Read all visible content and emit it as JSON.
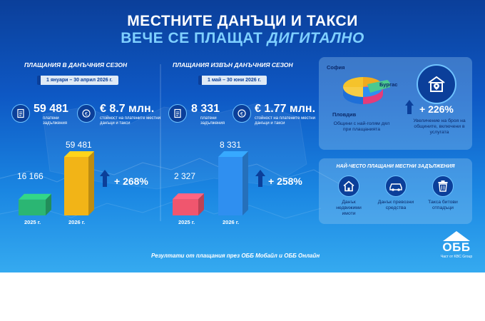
{
  "header": {
    "title_line1": "МЕСТНИТЕ ДАНЪЦИ И ТАКСИ",
    "title_line2_a": "ВЕЧЕ СЕ ПЛАЩАТ ",
    "title_line2_b": "ДИГИТАЛНО"
  },
  "season": {
    "heading": "ПЛАЩАНИЯ В ДАНЪЧНИЯ СЕЗОН",
    "period": "1 януари – 30 април 2026 г.",
    "count_value": "59 481",
    "count_label": "платени задължения",
    "amount_value": "€ 8.7 млн.",
    "amount_label": "стойност на платените местни данъци и такси",
    "bar_prev_value": "16 166",
    "bar_prev_year": "2025 г.",
    "bar_curr_value": "59 481",
    "bar_curr_year": "2026 г.",
    "growth": "+ 268%"
  },
  "offseason": {
    "heading": "ПЛАЩАНИЯ ИЗВЪН ДАНЪЧНИЯ СЕЗОН",
    "period": "1 май – 30 юни 2026 г.",
    "count_value": "8 331",
    "count_label": "платени задължения",
    "amount_value": "€ 1.77 млн.",
    "amount_label": "стойност на платените местни данъци и такси",
    "bar_prev_value": "2 327",
    "bar_prev_year": "2025 г.",
    "bar_curr_value": "8 331",
    "bar_curr_year": "2026 г.",
    "growth": "+ 258%"
  },
  "municipalities": {
    "city_sofia": "София",
    "city_burgas": "Бургас",
    "city_plovdiv": "Пловдив",
    "pie_caption": "Общини с най-голям дял при плащанията",
    "growth": "+ 226%",
    "growth_caption": "Увеличение на броя на общините, включени в услугата"
  },
  "frequent": {
    "heading": "НАЙ-ЧЕСТО ПЛАЩАНИ МЕСТНИ ЗАДЪЛЖЕНИЯ",
    "item1": "Данък недвижими имоти",
    "item2": "Данък превозни средства",
    "item3": "Такса битови отпадъци"
  },
  "footer": {
    "text": "Резултати от плащания през ОББ Мобайл и ОББ Онлайн",
    "brand": "ОББ",
    "brand_sub": "Част от KBC Group"
  },
  "colors": {
    "bar_2025_season": "#2bb673",
    "bar_2026_season": "#f2b417",
    "bar_2025_off": "#f0566e",
    "bar_2026_off": "#2f8ff0"
  },
  "bar_values": {
    "season": [
      16166,
      59481
    ],
    "offseason": [
      2327,
      8331
    ]
  }
}
